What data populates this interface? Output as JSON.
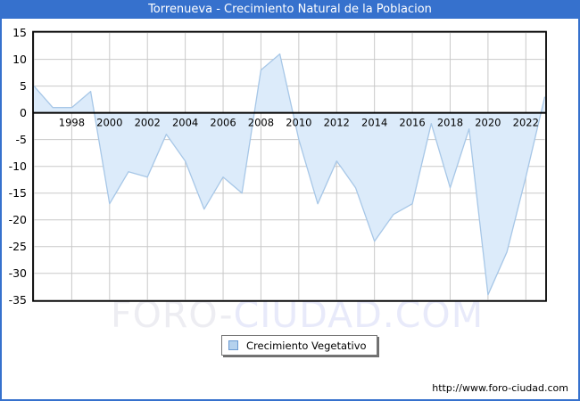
{
  "window": {
    "title": "Torrenueva - Crecimiento Natural de la Poblacion",
    "titlebar_color": "#3671cd"
  },
  "chart_data": {
    "type": "area",
    "title": "Torrenueva - Crecimiento Natural de la Poblacion",
    "x": [
      1996,
      1997,
      1998,
      1999,
      2000,
      2001,
      2002,
      2003,
      2004,
      2005,
      2006,
      2007,
      2008,
      2009,
      2010,
      2011,
      2012,
      2013,
      2014,
      2015,
      2016,
      2017,
      2018,
      2019,
      2020,
      2021,
      2022,
      2023
    ],
    "series": [
      {
        "name": "Crecimiento Vegetativo",
        "values": [
          5,
          1,
          1,
          4,
          -17,
          -11,
          -12,
          -4,
          -9,
          -18,
          -12,
          -15,
          8,
          11,
          -5,
          -17,
          -9,
          -14,
          -24,
          -19,
          -17,
          -2,
          -14,
          -3,
          -34,
          -26,
          -12,
          3
        ]
      }
    ],
    "ylim": [
      -35,
      15
    ],
    "y_tick_step": 5,
    "x_tick_years": [
      1998,
      2000,
      2002,
      2004,
      2006,
      2008,
      2010,
      2012,
      2014,
      2016,
      2018,
      2020,
      2022
    ],
    "grid": true,
    "legend_position": "bottom-center",
    "baseline": 0,
    "colors": {
      "line": "#a7c7e7",
      "fill": "#dcebfa",
      "grid": "#c9c9c9",
      "axis": "#000000",
      "tick_text": "#000000"
    }
  },
  "legend": {
    "label": "Crecimiento Vegetativo",
    "marker_fill": "#b5d2ee",
    "marker_border": "#6b9bd2"
  },
  "watermark": {
    "text_left": "FORO-",
    "text_right": "CIUDAD.COM"
  },
  "footer": {
    "url": "http://www.foro-ciudad.com"
  }
}
